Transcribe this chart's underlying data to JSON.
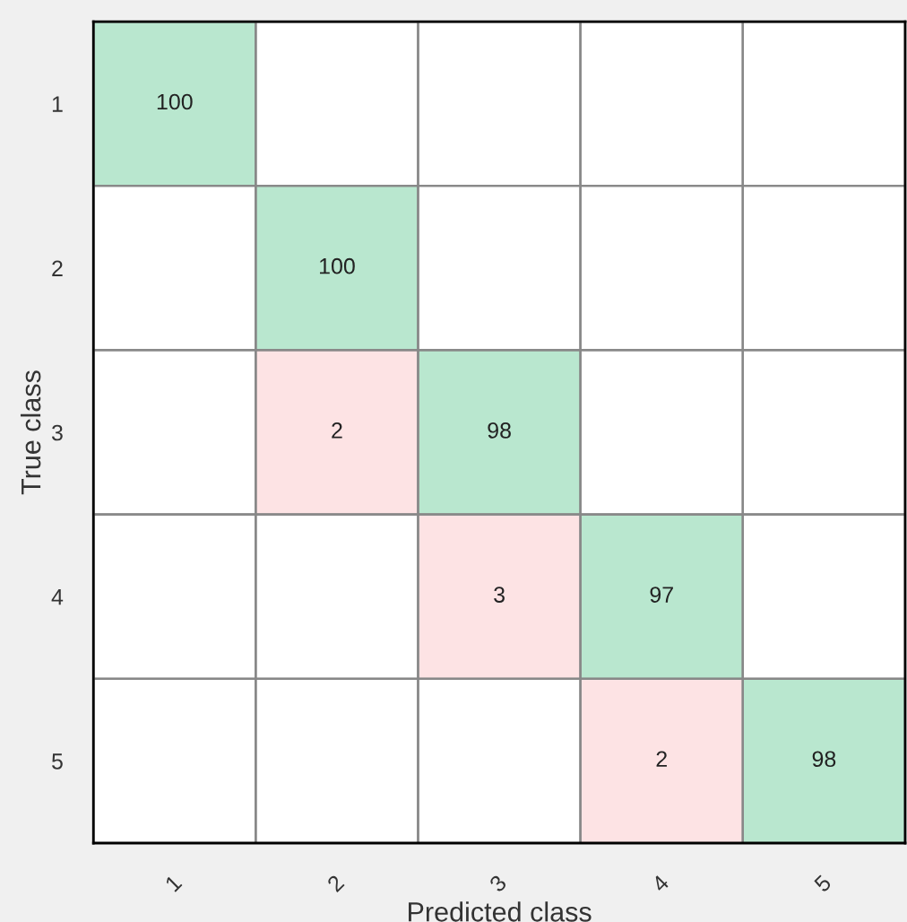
{
  "chart_data": {
    "type": "heatmap",
    "xlabel": "Predicted class",
    "ylabel": "True class",
    "categories": [
      "1",
      "2",
      "3",
      "4",
      "5"
    ],
    "y_categories": [
      "1",
      "2",
      "3",
      "4",
      "5"
    ],
    "cells": [
      [
        100,
        null,
        null,
        null,
        null
      ],
      [
        null,
        100,
        null,
        null,
        null
      ],
      [
        null,
        2,
        98,
        null,
        null
      ],
      [
        null,
        null,
        3,
        97,
        null
      ],
      [
        null,
        null,
        null,
        2,
        98
      ]
    ],
    "colors": [
      "#b9e7cf",
      "#fde3e4"
    ],
    "data_labels": true
  }
}
